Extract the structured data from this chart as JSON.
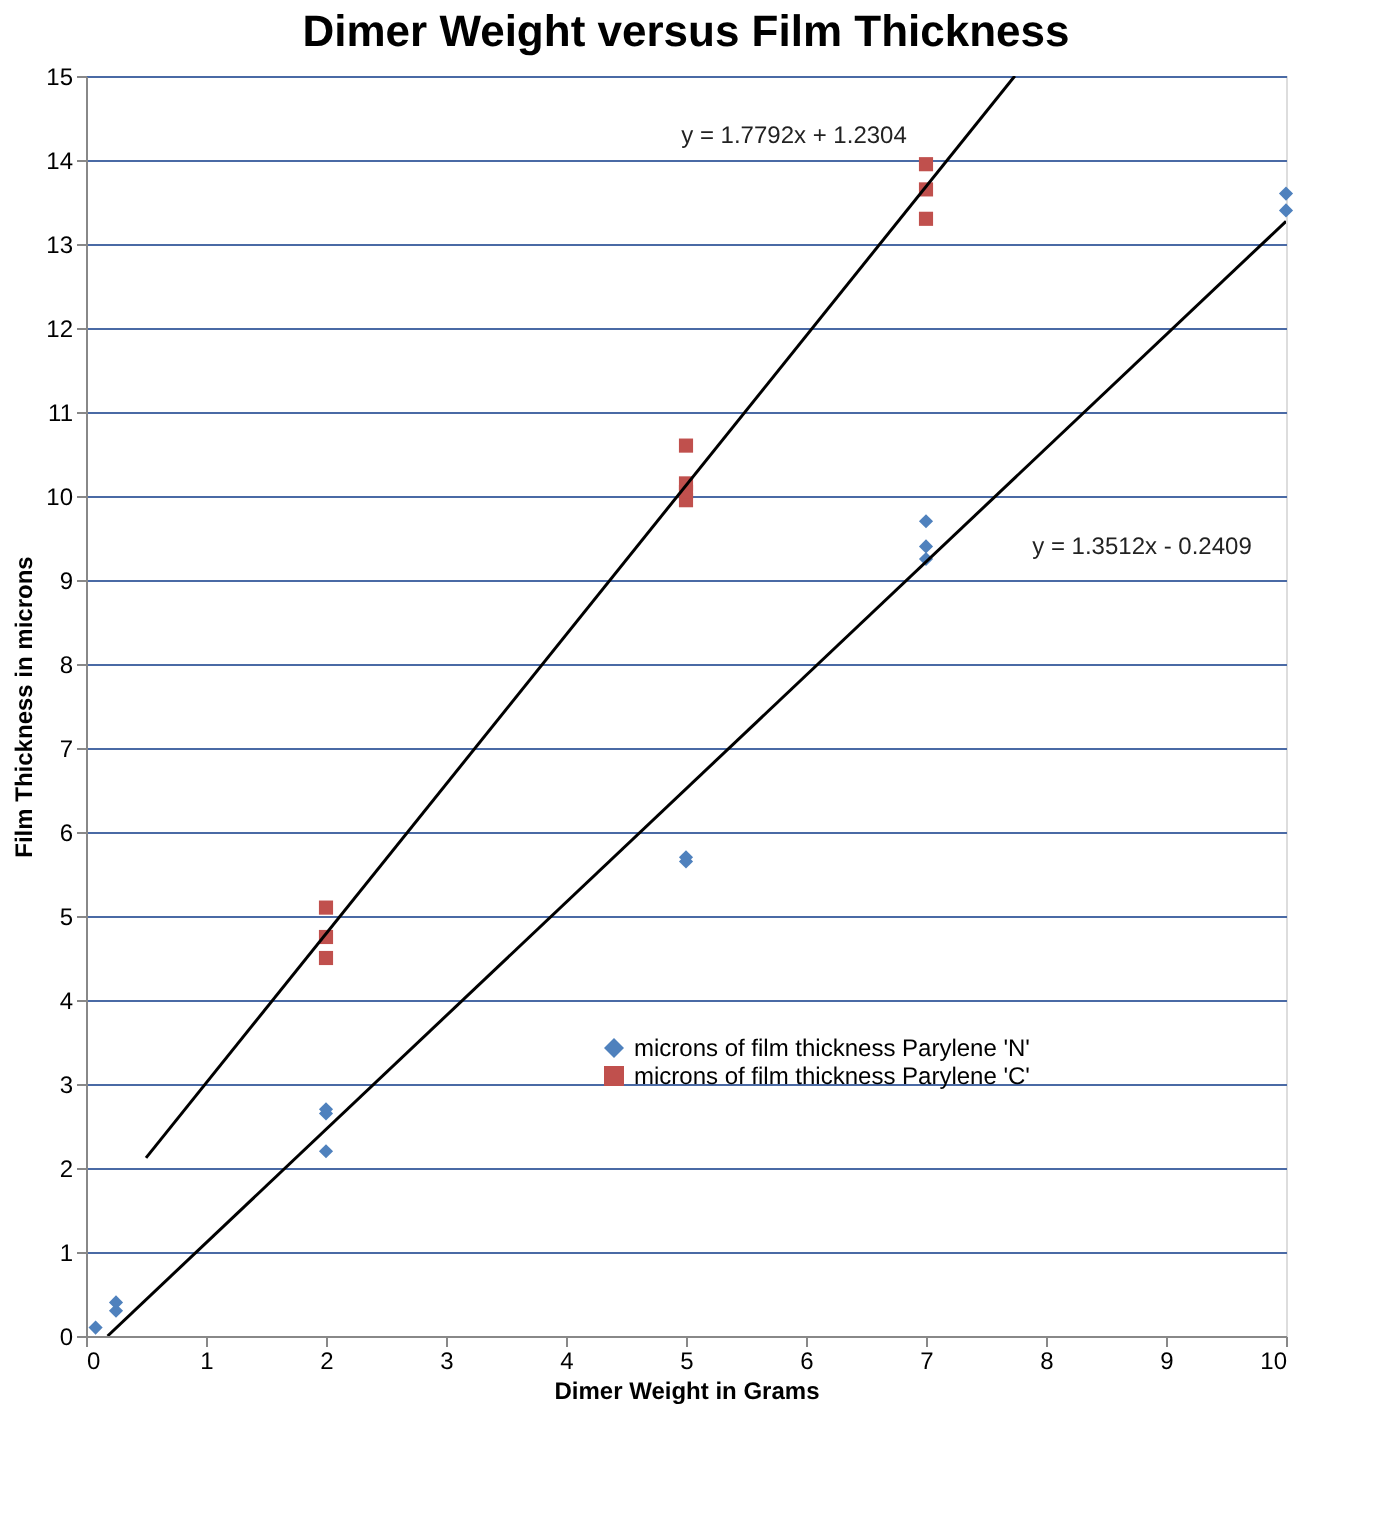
{
  "chart_data": {
    "type": "scatter",
    "title": "Dimer Weight versus Film Thickness",
    "xlabel": "Dimer Weight in Grams",
    "ylabel": "Film Thickness in microns",
    "xlim": [
      0,
      10
    ],
    "ylim": [
      0,
      15
    ],
    "xticks": [
      0,
      1,
      2,
      3,
      4,
      5,
      6,
      7,
      8,
      9,
      10
    ],
    "yticks": [
      0,
      1,
      2,
      3,
      4,
      5,
      6,
      7,
      8,
      9,
      10,
      11,
      12,
      13,
      14,
      15
    ],
    "grid": "y",
    "legend": "bottom right",
    "series": [
      {
        "name": "microns of film thickness Parylene  'N'",
        "color": "#4f81bd",
        "marker": "diamond",
        "x": [
          0.08,
          0.25,
          0.25,
          2,
          2,
          2,
          5,
          5,
          7,
          7,
          7,
          10,
          10
        ],
        "values": [
          0.1,
          0.3,
          0.4,
          2.2,
          2.65,
          2.7,
          5.65,
          5.7,
          9.25,
          9.4,
          9.7,
          13.4,
          13.6
        ]
      },
      {
        "name": "microns of film thickness Parylene  'C'",
        "color": "#c0504d",
        "marker": "square",
        "x": [
          2,
          2,
          2,
          5,
          5,
          5,
          5,
          7,
          7,
          7
        ],
        "values": [
          4.5,
          4.75,
          5.1,
          9.95,
          10.05,
          10.15,
          10.6,
          13.3,
          13.65,
          13.95
        ]
      },
      {
        "type": "line",
        "color": "#000000",
        "x": [
          0.5,
          7.74
        ],
        "values": [
          2.12,
          15
        ]
      },
      {
        "type": "line",
        "color": "#000000",
        "x": [
          0.18,
          10
        ],
        "values": [
          0,
          13.27
        ]
      }
    ],
    "annotations": [
      "y = 1.7792x + 1.2304",
      "y = 1.3512x - 0.2409"
    ]
  }
}
